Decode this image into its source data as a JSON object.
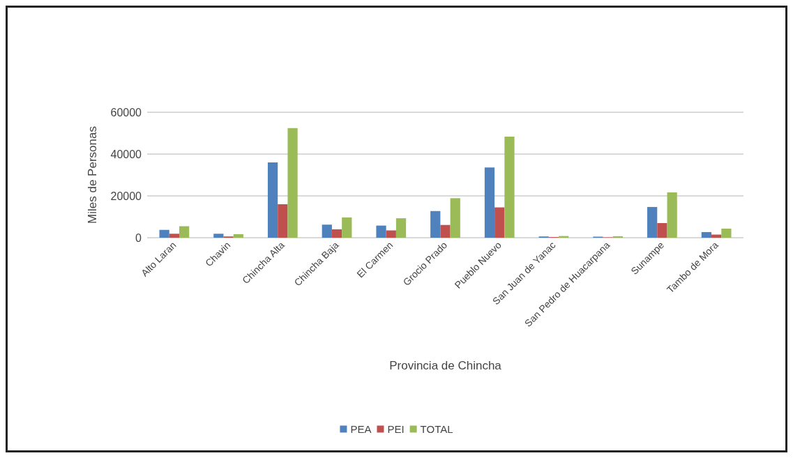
{
  "chart_data": {
    "type": "bar",
    "xlabel": "Provincia de Chincha",
    "ylabel": "Miles de Personas",
    "categories": [
      "Alto Laran",
      "Chavin",
      "Chincha Alta",
      "Chincha Baja",
      "El Carmen",
      "Grocio Prado",
      "Pueblo Nuevo",
      "San Juan de Yanac",
      "San Pedro de Huacarpana",
      "Sunampe",
      "Tambo de Mora"
    ],
    "series": [
      {
        "name": "PEA",
        "color": "#4f81bd",
        "values": [
          3750,
          1900,
          36000,
          6250,
          5800,
          12750,
          33600,
          600,
          500,
          14700,
          2700
        ]
      },
      {
        "name": "PEI",
        "color": "#c0504d",
        "values": [
          1900,
          600,
          16000,
          4000,
          3500,
          6100,
          14500,
          300,
          200,
          7000,
          1500
        ]
      },
      {
        "name": "TOTAL",
        "color": "#9bbb59",
        "values": [
          5500,
          1700,
          52400,
          9700,
          9300,
          18900,
          48300,
          800,
          700,
          21700,
          4300
        ]
      }
    ],
    "ylim": [
      0,
      60000
    ],
    "yticks": [
      0,
      20000,
      40000,
      60000
    ],
    "grid": "y",
    "legend": "bottom"
  }
}
